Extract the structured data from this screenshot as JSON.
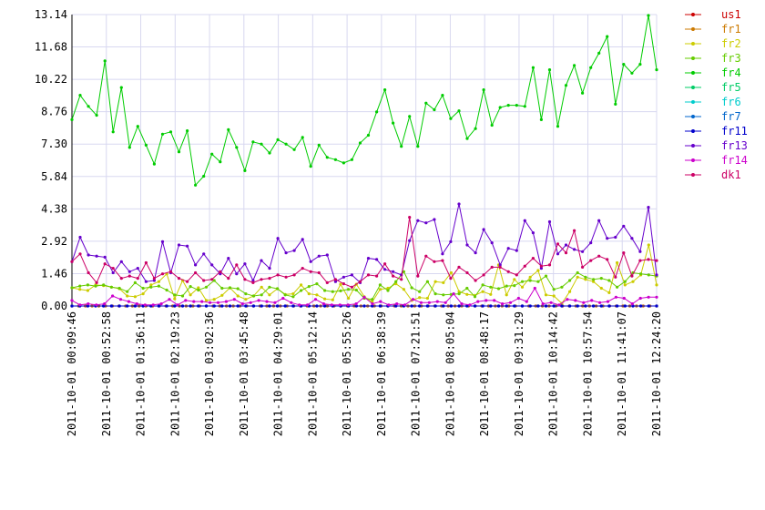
{
  "chart_data": {
    "type": "line",
    "xlabel": "",
    "ylabel": "",
    "grid": true,
    "legend_placement": "right",
    "y_ticks": [
      "0.00",
      "1.46",
      "2.92",
      "4.38",
      "5.84",
      "7.30",
      "8.76",
      "10.22",
      "11.68",
      "13.14"
    ],
    "ylim": [
      0,
      13.14
    ],
    "x_ticks": [
      "2011-10-01 00:09:46",
      "2011-10-01 00:52:58",
      "2011-10-01 01:36:11",
      "2011-10-01 02:19:23",
      "2011-10-01 03:02:36",
      "2011-10-01 03:45:48",
      "2011-10-01 04:29:01",
      "2011-10-01 05:12:14",
      "2011-10-01 05:55:26",
      "2011-10-01 06:38:39",
      "2011-10-01 07:21:51",
      "2011-10-01 08:05:04",
      "2011-10-01 08:48:17",
      "2011-10-01 09:31:29",
      "2011-10-01 10:14:42",
      "2011-10-01 10:57:54",
      "2011-10-01 11:41:07",
      "2011-10-01 12:24:20"
    ],
    "x_start": "2011-10-01 00:09:46",
    "x_end": "2011-10-01 12:24:20",
    "series": [
      {
        "name": "us1",
        "color": "#cc0000",
        "values": [
          0,
          0,
          0,
          0,
          0,
          0,
          0,
          0,
          0,
          0,
          0,
          0,
          0,
          0,
          0,
          0,
          0,
          0,
          0,
          0,
          0,
          0,
          0,
          0,
          0,
          0,
          0,
          0,
          0,
          0,
          0,
          0,
          0,
          0,
          0,
          0,
          0,
          0,
          0,
          0,
          0,
          0,
          0,
          0,
          0,
          0,
          0,
          0,
          0,
          0,
          0,
          0,
          0,
          0,
          0,
          0,
          0,
          0,
          0,
          0,
          0,
          0,
          0,
          0,
          0,
          0,
          0,
          0,
          0,
          0,
          0,
          0,
          0,
          0,
          0,
          0,
          0,
          0,
          0,
          0,
          0,
          0,
          0,
          0,
          0,
          0,
          0,
          0
        ]
      },
      {
        "name": "fr1",
        "color": "#cc7a00",
        "values": [
          0,
          0,
          0,
          0,
          0,
          0,
          0,
          0,
          0,
          0,
          0,
          0,
          0,
          0,
          0,
          0,
          0,
          0,
          0,
          0,
          0,
          0,
          0,
          0,
          0,
          0,
          0,
          0,
          0,
          0,
          0,
          0,
          0,
          0,
          0,
          0,
          0,
          0,
          0,
          0,
          0,
          0,
          0,
          0,
          0,
          0,
          0,
          0,
          0,
          0,
          0,
          0,
          0,
          0,
          0,
          0,
          0,
          0,
          0,
          0,
          0,
          0,
          0,
          0,
          0,
          0,
          0,
          0,
          0,
          0,
          0,
          0,
          0,
          0,
          0,
          0,
          0,
          0,
          0,
          0,
          0,
          0,
          0,
          0,
          0,
          0,
          0,
          0
        ]
      },
      {
        "name": "fr2",
        "color": "#cccc00",
        "values": [
          0.82,
          0.75,
          0.7,
          0.95,
          0.92,
          0.85,
          0.78,
          0.45,
          0.42,
          0.55,
          0.95,
          1.1,
          1.45,
          0.32,
          1.15,
          0.5,
          0.82,
          0.25,
          0.3,
          0.48,
          0.82,
          0.45,
          0.3,
          0.45,
          0.85,
          0.5,
          0.78,
          0.52,
          0.55,
          0.95,
          0.55,
          0.5,
          0.32,
          0.28,
          0.98,
          0.35,
          0.98,
          0.42,
          0.18,
          0.75,
          0.8,
          1.0,
          0.75,
          0.25,
          0.38,
          0.35,
          1.1,
          1.05,
          1.5,
          0.65,
          0.52,
          0.48,
          0.65,
          0.52,
          1.85,
          0.5,
          1.2,
          0.85,
          1.3,
          1.6,
          0.5,
          0.45,
          0.12,
          0.65,
          1.3,
          1.2,
          1.1,
          0.8,
          0.6,
          1.95,
          0.95,
          1.1,
          1.4,
          2.75,
          0.95
        ]
      },
      {
        "name": "fr3",
        "color": "#66cc00",
        "values": [
          0.82,
          0.9,
          0.95,
          0.9,
          0.95,
          0.85,
          0.8,
          0.65,
          1.05,
          0.8,
          0.85,
          0.9,
          0.72,
          0.5,
          0.45,
          0.88,
          0.72,
          0.85,
          1.15,
          0.8,
          0.82,
          0.78,
          0.55,
          0.45,
          0.5,
          0.85,
          0.78,
          0.5,
          0.42,
          0.7,
          0.88,
          1.0,
          0.7,
          0.65,
          0.68,
          0.75,
          0.72,
          0.35,
          0.3,
          0.95,
          0.7,
          1.1,
          1.55,
          0.82,
          0.65,
          1.1,
          0.55,
          0.5,
          0.52,
          0.55,
          0.8,
          0.42,
          0.95,
          0.85,
          0.78,
          0.9,
          0.92,
          1.1,
          1.15,
          1.1,
          1.35,
          0.75,
          0.85,
          1.15,
          1.5,
          1.3,
          1.2,
          1.25,
          1.15,
          0.85,
          1.1,
          1.5,
          1.45,
          1.4,
          1.35
        ]
      },
      {
        "name": "fr4",
        "color": "#00cc00",
        "values": [
          8.4,
          9.5,
          9.0,
          8.6,
          11.05,
          7.85,
          9.85,
          7.15,
          8.1,
          7.25,
          6.4,
          7.75,
          7.85,
          6.95,
          7.9,
          5.45,
          5.85,
          6.85,
          6.5,
          7.95,
          7.15,
          6.1,
          7.4,
          7.3,
          6.9,
          7.5,
          7.3,
          7.05,
          7.6,
          6.3,
          7.25,
          6.7,
          6.6,
          6.45,
          6.6,
          7.35,
          7.7,
          8.75,
          9.75,
          8.25,
          7.2,
          8.55,
          7.2,
          9.15,
          8.85,
          9.5,
          8.45,
          8.8,
          7.55,
          8.0,
          9.75,
          8.15,
          8.95,
          9.05,
          9.05,
          9.0,
          10.75,
          8.4,
          10.65,
          8.1,
          9.95,
          10.85,
          9.6,
          10.75,
          11.4,
          12.15,
          9.1,
          10.9,
          10.5,
          10.9,
          13.1,
          10.65
        ]
      },
      {
        "name": "fr5",
        "color": "#00cc66",
        "values": []
      },
      {
        "name": "fr6",
        "color": "#00cccc",
        "values": []
      },
      {
        "name": "fr7",
        "color": "#0066cc",
        "values": [
          0,
          0,
          0,
          0,
          0,
          0,
          0,
          0,
          0,
          0,
          0,
          0,
          0,
          0,
          0,
          0,
          0,
          0,
          0,
          0,
          0,
          0,
          0,
          0,
          0,
          0,
          0,
          0,
          0,
          0,
          0,
          0,
          0,
          0,
          0,
          0,
          0,
          0,
          0,
          0,
          0,
          0,
          0,
          0,
          0,
          0,
          0,
          0,
          0,
          0,
          0,
          0,
          0,
          0,
          0,
          0,
          0,
          0,
          0,
          0,
          0,
          0,
          0,
          0,
          0,
          0,
          0,
          0,
          0,
          0,
          0,
          0,
          0,
          0,
          0
        ]
      },
      {
        "name": "fr11",
        "color": "#0000cc",
        "values": [
          0,
          0,
          0,
          0,
          0,
          0,
          0,
          0,
          0,
          0,
          0,
          0,
          0,
          0,
          0,
          0,
          0,
          0,
          0,
          0,
          0,
          0,
          0,
          0,
          0,
          0,
          0,
          0,
          0,
          0,
          0,
          0,
          0,
          0,
          0,
          0,
          0,
          0,
          0,
          0,
          0,
          0,
          0,
          0,
          0,
          0,
          0,
          0,
          0,
          0,
          0,
          0,
          0,
          0,
          0,
          0,
          0,
          0,
          0,
          0,
          0,
          0,
          0,
          0,
          0,
          0,
          0,
          0,
          0,
          0,
          0,
          0,
          0,
          0,
          0
        ]
      },
      {
        "name": "fr13",
        "color": "#6600cc",
        "values": [
          2.0,
          3.1,
          2.3,
          2.25,
          2.2,
          1.5,
          2.0,
          1.55,
          1.7,
          1.1,
          1.15,
          2.9,
          1.5,
          2.75,
          2.7,
          1.85,
          2.35,
          1.85,
          1.45,
          2.15,
          1.45,
          1.9,
          1.15,
          2.05,
          1.7,
          3.05,
          2.4,
          2.5,
          3.0,
          2.0,
          2.25,
          2.3,
          1.1,
          1.3,
          1.4,
          1.05,
          2.15,
          2.1,
          1.65,
          1.55,
          1.4,
          2.95,
          3.85,
          3.75,
          3.9,
          2.35,
          2.9,
          4.6,
          2.75,
          2.4,
          3.45,
          2.85,
          1.85,
          2.6,
          2.5,
          3.85,
          3.3,
          1.7,
          3.8,
          2.35,
          2.75,
          2.55,
          2.45,
          2.85,
          3.85,
          3.05,
          3.1,
          3.6,
          3.05,
          2.45,
          4.45,
          1.4
        ]
      },
      {
        "name": "fr14",
        "color": "#cc00cc",
        "values": [
          0.25,
          0.05,
          0.1,
          0.05,
          0.1,
          0.45,
          0.3,
          0.2,
          0.1,
          0.05,
          0.05,
          0.1,
          0.3,
          0.05,
          0.25,
          0.2,
          0.2,
          0.15,
          0.15,
          0.2,
          0.3,
          0.1,
          0.15,
          0.25,
          0.2,
          0.15,
          0.35,
          0.15,
          0.05,
          0.05,
          0.3,
          0.1,
          0.05,
          0.05,
          0.05,
          0.1,
          0.4,
          0.1,
          0.2,
          0.05,
          0.1,
          0.05,
          0.3,
          0.15,
          0.15,
          0.2,
          0.15,
          0.55,
          0.1,
          0.05,
          0.2,
          0.25,
          0.25,
          0.1,
          0.15,
          0.35,
          0.2,
          0.8,
          0.1,
          0.15,
          0.05,
          0.3,
          0.25,
          0.15,
          0.25,
          0.15,
          0.2,
          0.4,
          0.35,
          0.1,
          0.35,
          0.4,
          0.4
        ]
      },
      {
        "name": "dk1",
        "color": "#cc0066",
        "values": [
          2.0,
          2.35,
          1.5,
          1.05,
          1.9,
          1.7,
          1.25,
          1.35,
          1.25,
          1.95,
          1.25,
          1.45,
          1.55,
          1.25,
          1.1,
          1.5,
          1.15,
          1.2,
          1.55,
          1.25,
          1.85,
          1.2,
          1.05,
          1.2,
          1.25,
          1.4,
          1.3,
          1.4,
          1.7,
          1.55,
          1.5,
          1.05,
          1.2,
          1.0,
          0.85,
          1.1,
          1.4,
          1.35,
          1.9,
          1.35,
          1.2,
          4.0,
          1.35,
          2.25,
          2.0,
          2.05,
          1.25,
          1.75,
          1.5,
          1.15,
          1.4,
          1.75,
          1.75,
          1.55,
          1.4,
          1.8,
          2.15,
          1.8,
          1.85,
          2.8,
          2.4,
          3.4,
          1.75,
          2.05,
          2.25,
          2.1,
          1.3,
          2.4,
          1.35,
          2.05,
          2.1,
          2.05
        ]
      }
    ]
  }
}
